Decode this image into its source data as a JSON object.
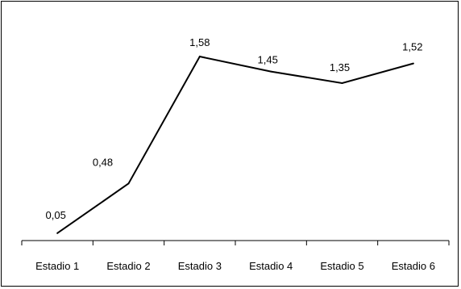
{
  "chart_data": {
    "type": "line",
    "title": "",
    "xlabel": "",
    "ylabel": "",
    "categories": [
      "Estadio 1",
      "Estadio 2",
      "Estadio 3",
      "Estadio 4",
      "Estadio 5",
      "Estadio 6"
    ],
    "series": [
      {
        "values": [
          0.05,
          0.48,
          1.58,
          1.45,
          1.35,
          1.52
        ]
      }
    ],
    "data_labels": [
      "0,05",
      "0,48",
      "1,58",
      "1,45",
      "1,35",
      "1,52"
    ],
    "ylim": [
      0,
      1.9
    ],
    "grid": false,
    "legend": "none",
    "line_color": "#000000"
  }
}
